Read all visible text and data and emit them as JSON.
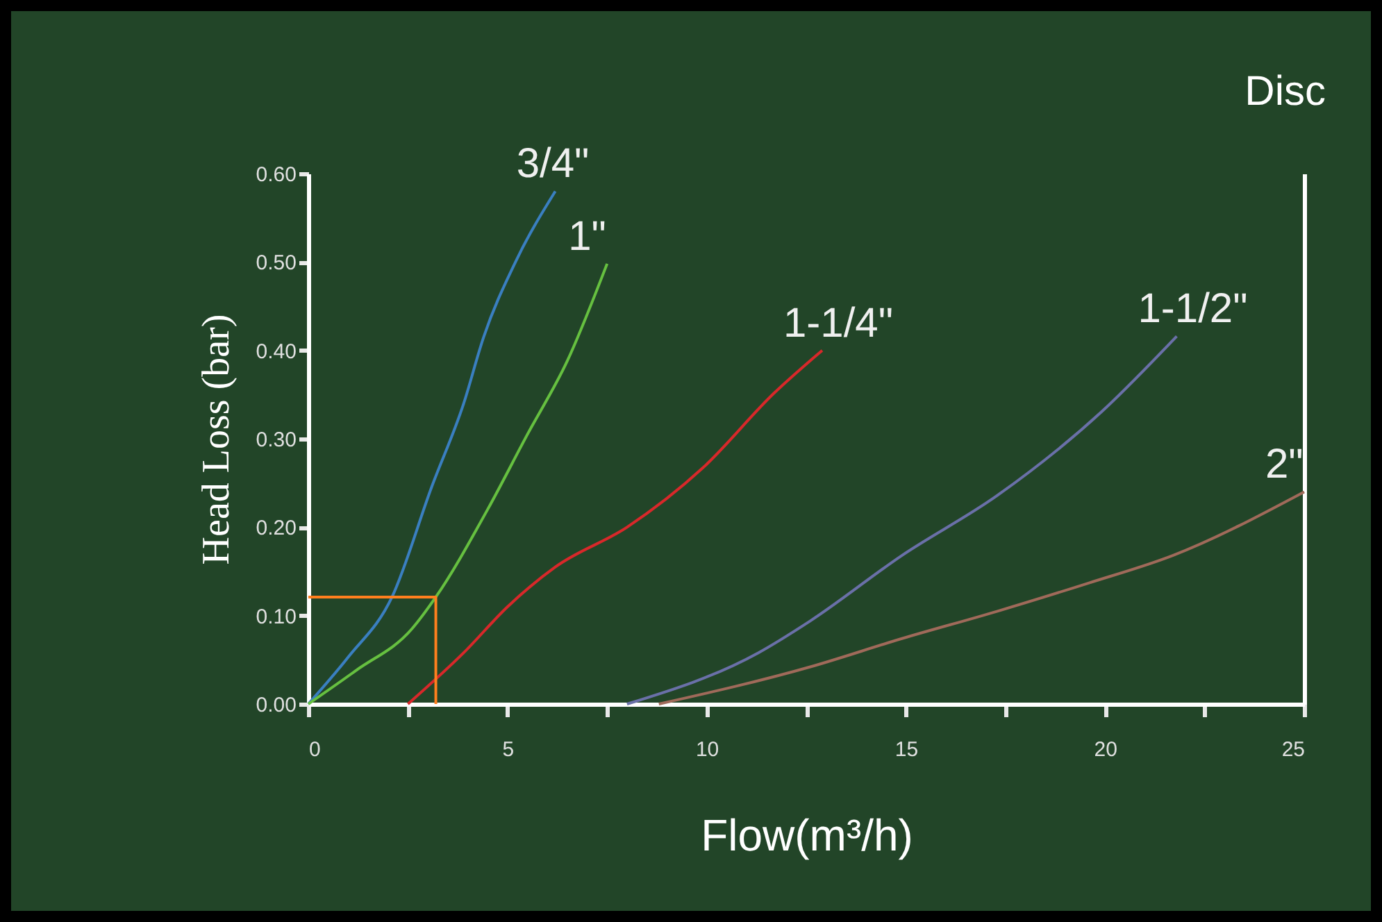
{
  "chart_data": {
    "type": "line",
    "title": "Disc",
    "xlabel": "Flow(m³/h)",
    "ylabel": "Head Loss (bar)",
    "xlim": [
      0,
      25
    ],
    "ylim": [
      0,
      0.6
    ],
    "xticks": [
      0,
      {
        "value": 2.5,
        "label": null
      },
      5,
      {
        "value": 7.5,
        "label": null
      },
      10,
      {
        "value": 12.5,
        "label": null
      },
      15,
      {
        "value": 17.5,
        "label": null
      },
      20,
      {
        "value": 22.5,
        "label": null
      },
      25
    ],
    "yticks": [
      {
        "value": 0,
        "label": "0.00"
      },
      {
        "value": 0.1,
        "label": "0.10"
      },
      {
        "value": 0.2,
        "label": "0.20"
      },
      {
        "value": 0.3,
        "label": "0.30"
      },
      {
        "value": 0.4,
        "label": "0.40"
      },
      {
        "value": 0.5,
        "label": "0.50"
      },
      {
        "value": 0.6,
        "label": "0.60"
      }
    ],
    "grid": false,
    "legend": false,
    "series": [
      {
        "name": "3/4\"",
        "color": "#3a7fc0",
        "x": [
          0,
          1,
          2.1,
          3.1,
          3.9,
          4.4,
          5.2,
          6.2
        ],
        "values": [
          0,
          0.053,
          0.121,
          0.246,
          0.34,
          0.415,
          0.5,
          0.58
        ]
      },
      {
        "name": "1\"",
        "color": "#66c040",
        "x": [
          0,
          1.2,
          2.6,
          3.2,
          4.5,
          5.5,
          6.5,
          7.5
        ],
        "values": [
          0,
          0.038,
          0.085,
          0.121,
          0.22,
          0.305,
          0.388,
          0.498
        ]
      },
      {
        "name": "1-1/4\"",
        "color": "#d8282a",
        "x": [
          2.5,
          3.9,
          5,
          6.2,
          8,
          9.9,
          11.7,
          12.9
        ],
        "values": [
          0,
          0.058,
          0.11,
          0.155,
          0.2,
          0.267,
          0.352,
          0.4
        ]
      },
      {
        "name": "1-1/2\"",
        "color": "#6a70a8",
        "x": [
          8,
          11.3,
          12.6,
          14.9,
          17.3,
          19.9,
          21.8
        ],
        "values": [
          0,
          0.058,
          0.094,
          0.168,
          0.236,
          0.33,
          0.416
        ]
      },
      {
        "name": "2\"",
        "color": "#a06a5a",
        "x": [
          8.8,
          12.6,
          14.9,
          17.3,
          19.6,
          21.7,
          25
        ],
        "values": [
          0,
          0.042,
          0.074,
          0.105,
          0.137,
          0.168,
          0.24
        ]
      },
      {
        "color": "#ff7f1e",
        "x": [
          0,
          3.2,
          3.2
        ],
        "values": [
          0.121,
          0.121,
          0
        ]
      }
    ]
  }
}
